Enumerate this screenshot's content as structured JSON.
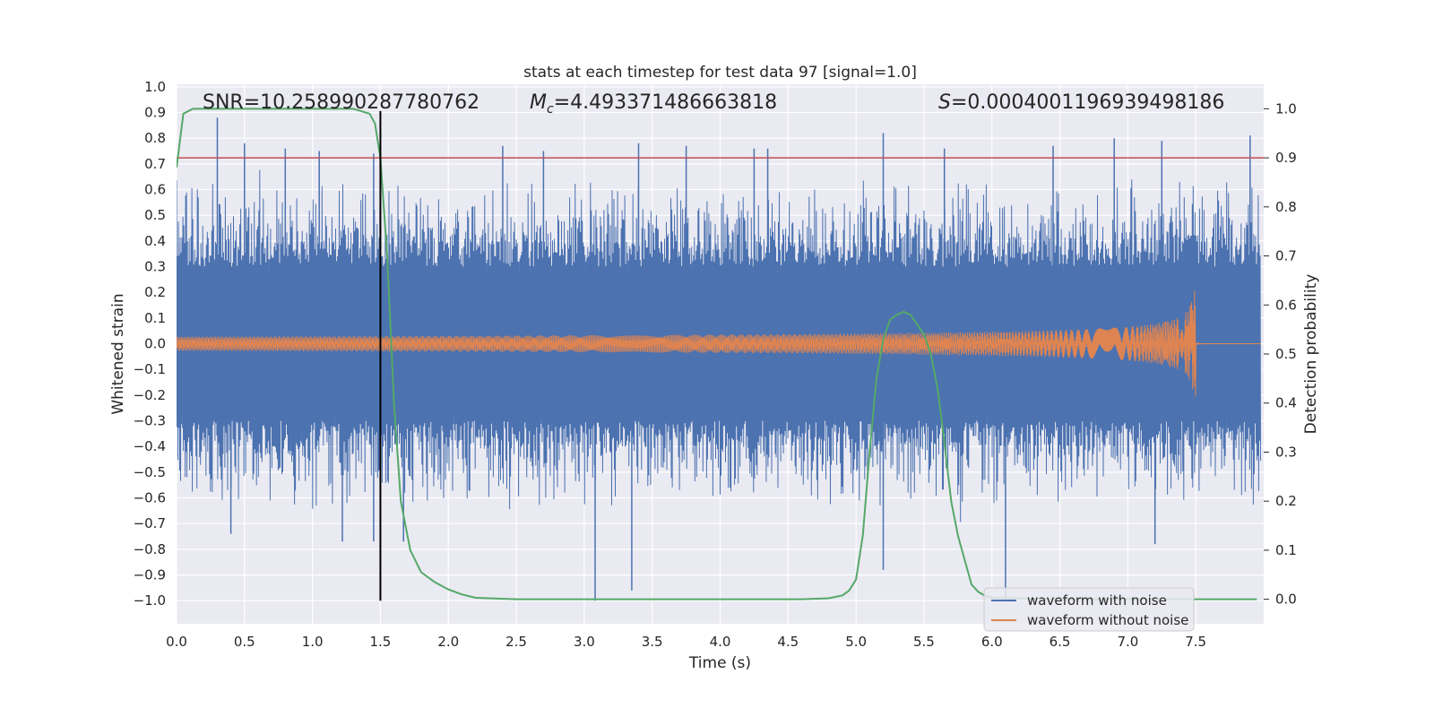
{
  "chart_data": {
    "type": "line",
    "title": "stats at each timestep for test data 97 [signal=1.0]",
    "xlabel": "Time (s)",
    "ylabel": "Whitened strain",
    "y2label": "Detection probability",
    "xlim": [
      0.0,
      8.0
    ],
    "ylim": [
      -1.09,
      1.01
    ],
    "y2lim": [
      -0.05,
      1.05
    ],
    "xticks": [
      "0.0",
      "0.5",
      "1.0",
      "1.5",
      "2.0",
      "2.5",
      "3.0",
      "3.5",
      "4.0",
      "4.5",
      "5.0",
      "5.5",
      "6.0",
      "6.5",
      "7.0",
      "7.5"
    ],
    "yticks": [
      "1.0",
      "0.9",
      "0.8",
      "0.7",
      "0.6",
      "0.5",
      "0.4",
      "0.3",
      "0.2",
      "0.1",
      "0.0",
      "−0.1",
      "−0.2",
      "−0.3",
      "−0.4",
      "−0.5",
      "−0.6",
      "−0.7",
      "−0.8",
      "−0.9",
      "−1.0"
    ],
    "y2ticks": [
      "1.0",
      "0.9",
      "0.8",
      "0.7",
      "0.6",
      "0.5",
      "0.4",
      "0.3",
      "0.2",
      "0.1",
      "0.0"
    ],
    "annotations": {
      "snr": "SNR=10.258990287780762",
      "mc": "=4.493371486663818",
      "mc_sym": "M",
      "mc_sub": "c",
      "s": "=0.0004001196939498186",
      "s_sym": "S"
    },
    "threshold": 0.9,
    "marker_time": 1.5,
    "series": [
      {
        "name": "waveform with noise",
        "color": "#4c72b0",
        "description": "whitened noisy strain, envelope approx ±0.45 with spikes to ±0.9",
        "spikes": [
          [
            0.3,
            0.88
          ],
          [
            0.5,
            0.78
          ],
          [
            0.8,
            0.76
          ],
          [
            1.05,
            0.75
          ],
          [
            1.45,
            0.74
          ],
          [
            2.4,
            0.77
          ],
          [
            2.7,
            0.75
          ],
          [
            3.4,
            0.78
          ],
          [
            3.75,
            0.77
          ],
          [
            4.25,
            0.76
          ],
          [
            4.35,
            0.76
          ],
          [
            5.2,
            0.82
          ],
          [
            5.65,
            0.76
          ],
          [
            6.45,
            0.77
          ],
          [
            6.9,
            0.8
          ],
          [
            7.25,
            0.79
          ],
          [
            7.9,
            0.81
          ],
          [
            0.4,
            -0.74
          ],
          [
            1.22,
            -0.77
          ],
          [
            1.45,
            -0.77
          ],
          [
            1.67,
            -0.77
          ],
          [
            3.08,
            -1.0
          ],
          [
            3.35,
            -0.96
          ],
          [
            5.2,
            -0.88
          ],
          [
            6.1,
            -1.0
          ],
          [
            7.2,
            -0.78
          ]
        ]
      },
      {
        "name": "waveform without noise",
        "color": "#dd8452",
        "description": "inspiral chirp, amplitude grows from 0.02 to 0.22 and merges at 7.5 s",
        "merger_time": 7.5,
        "peak_amplitude": 0.22
      },
      {
        "name": "detection probability",
        "color": "#55a868",
        "axis": "right",
        "x": [
          0.0,
          0.05,
          0.12,
          0.2,
          0.5,
          1.0,
          1.3,
          1.42,
          1.46,
          1.5,
          1.55,
          1.6,
          1.65,
          1.72,
          1.8,
          1.9,
          2.0,
          2.1,
          2.2,
          2.5,
          3.0,
          4.0,
          4.6,
          4.8,
          4.9,
          4.95,
          5.0,
          5.05,
          5.1,
          5.15,
          5.2,
          5.25,
          5.3,
          5.35,
          5.4,
          5.45,
          5.5,
          5.55,
          5.6,
          5.65,
          5.7,
          5.75,
          5.8,
          5.85,
          5.9,
          5.95,
          6.0,
          6.5,
          7.0,
          7.5,
          7.95
        ],
        "y": [
          0.88,
          0.99,
          1.0,
          1.0,
          1.0,
          1.0,
          1.0,
          0.99,
          0.97,
          0.9,
          0.7,
          0.4,
          0.2,
          0.1,
          0.055,
          0.035,
          0.02,
          0.01,
          0.003,
          0.0,
          0.0,
          0.0,
          0.0,
          0.002,
          0.008,
          0.018,
          0.04,
          0.13,
          0.3,
          0.45,
          0.53,
          0.57,
          0.58,
          0.586,
          0.58,
          0.56,
          0.54,
          0.5,
          0.43,
          0.32,
          0.2,
          0.13,
          0.08,
          0.03,
          0.015,
          0.007,
          0.003,
          0.0,
          0.0,
          0.0,
          0.0
        ]
      }
    ],
    "legend": {
      "location": "lower-right",
      "entries": [
        {
          "label": "waveform with noise",
          "color": "#4c72b0"
        },
        {
          "label": "waveform without noise",
          "color": "#dd8452"
        }
      ]
    },
    "style": {
      "background": "#eaeaf2",
      "grid": "#ffffff",
      "threshold_color": "#c44e52",
      "marker_color": "#000000"
    }
  }
}
